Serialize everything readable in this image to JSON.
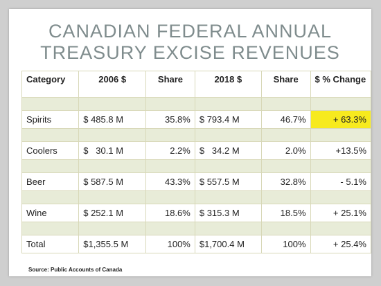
{
  "slide": {
    "title_line1": "CANADIAN FEDERAL ANNUAL",
    "title_line2": "TREASURY EXCISE REVENUES",
    "source": "Source: Public Accounts of Canada"
  },
  "table": {
    "headers": [
      "Category",
      "2006 $",
      "Share",
      "2018 $",
      "Share",
      "$ % Change"
    ],
    "rows": [
      {
        "category": "Spirits",
        "v2006": "$  485.8 M",
        "share2006": "35.8%",
        "v2018": "$  793.4 M",
        "share2018": "46.7%",
        "change": "+ 63.3%"
      },
      {
        "category": "Coolers",
        "v2006": "$   30.1 M",
        "share2006": "2.2%",
        "v2018": "$   34.2 M",
        "share2018": "2.0%",
        "change": "+13.5%"
      },
      {
        "category": "Beer",
        "v2006": "$  587.5 M",
        "share2006": "43.3%",
        "v2018": "$  557.5 M",
        "share2018": "32.8%",
        "change": "- 5.1%"
      },
      {
        "category": "Wine",
        "v2006": "$  252.1 M",
        "share2006": "18.6%",
        "v2018": "$  315.3 M",
        "share2018": "18.5%",
        "change": "+ 25.1%"
      },
      {
        "category": "Total",
        "v2006": "$1,355.5 M",
        "share2006": "100%",
        "v2018": "$1,700.4 M",
        "share2018": "100%",
        "change": "+ 25.4%"
      }
    ]
  },
  "colors": {
    "highlight": "#f7ea1e",
    "spacer_row": "#e8ecd8",
    "title": "#7f8c8d"
  }
}
